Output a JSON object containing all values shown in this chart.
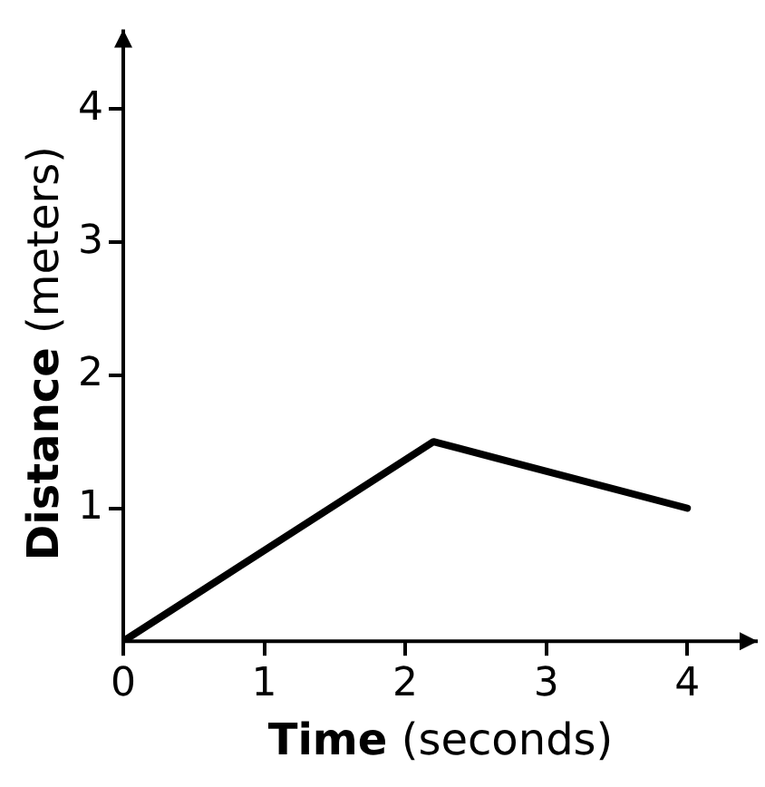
{
  "chart_data": {
    "type": "line",
    "xlabel": "Time (seconds)",
    "ylabel": "Distance (meters)",
    "x": [
      0,
      2.2,
      4
    ],
    "series": [
      {
        "color": "#000000",
        "values": [
          0,
          1.5,
          1.0
        ]
      }
    ],
    "xlim": [
      0,
      4.5
    ],
    "ylim": [
      0,
      4.6
    ],
    "xticks": [
      0,
      1,
      2,
      3,
      4
    ],
    "yticks": [
      1,
      2,
      3,
      4
    ],
    "grid": false,
    "legend": false,
    "marker": "none",
    "line_style": "solid"
  }
}
